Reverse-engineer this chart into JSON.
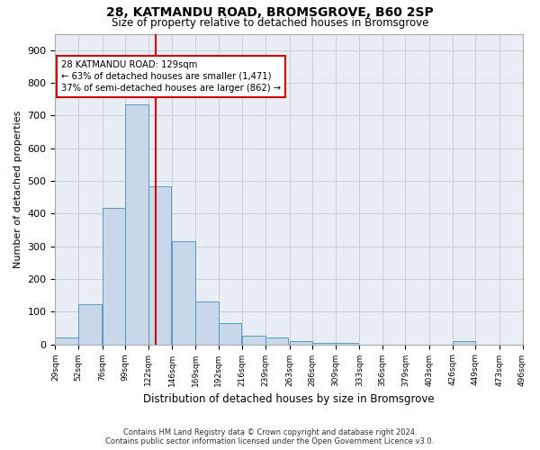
{
  "title1": "28, KATMANDU ROAD, BROMSGROVE, B60 2SP",
  "title2": "Size of property relative to detached houses in Bromsgrove",
  "xlabel": "Distribution of detached houses by size in Bromsgrove",
  "ylabel": "Number of detached properties",
  "bar_values": [
    20,
    122,
    418,
    733,
    483,
    315,
    131,
    66,
    25,
    20,
    10,
    5,
    5,
    0,
    0,
    0,
    0,
    10,
    0,
    0
  ],
  "bar_labels": [
    "29sqm",
    "52sqm",
    "76sqm",
    "99sqm",
    "122sqm",
    "146sqm",
    "169sqm",
    "192sqm",
    "216sqm",
    "239sqm",
    "263sqm",
    "286sqm",
    "309sqm",
    "333sqm",
    "356sqm",
    "379sqm",
    "403sqm",
    "426sqm",
    "449sqm",
    "473sqm",
    "496sqm"
  ],
  "bin_edges": [
    29,
    52,
    76,
    99,
    122,
    146,
    169,
    192,
    216,
    239,
    263,
    286,
    309,
    333,
    356,
    379,
    403,
    426,
    449,
    473,
    496
  ],
  "bar_color": "#c8d8ea",
  "bar_edge_color": "#5a9abf",
  "vline_x": 129,
  "vline_color": "#cc0000",
  "annotation_line1": "28 KATMANDU ROAD: 129sqm",
  "annotation_line2": "← 63% of detached houses are smaller (1,471)",
  "annotation_line3": "37% of semi-detached houses are larger (862) →",
  "ylim": [
    0,
    950
  ],
  "yticks": [
    0,
    100,
    200,
    300,
    400,
    500,
    600,
    700,
    800,
    900
  ],
  "grid_color": "#c8d0d8",
  "background_color": "#e8eef4",
  "footer1": "Contains HM Land Registry data © Crown copyright and database right 2024.",
  "footer2": "Contains public sector information licensed under the Open Government Licence v3.0."
}
